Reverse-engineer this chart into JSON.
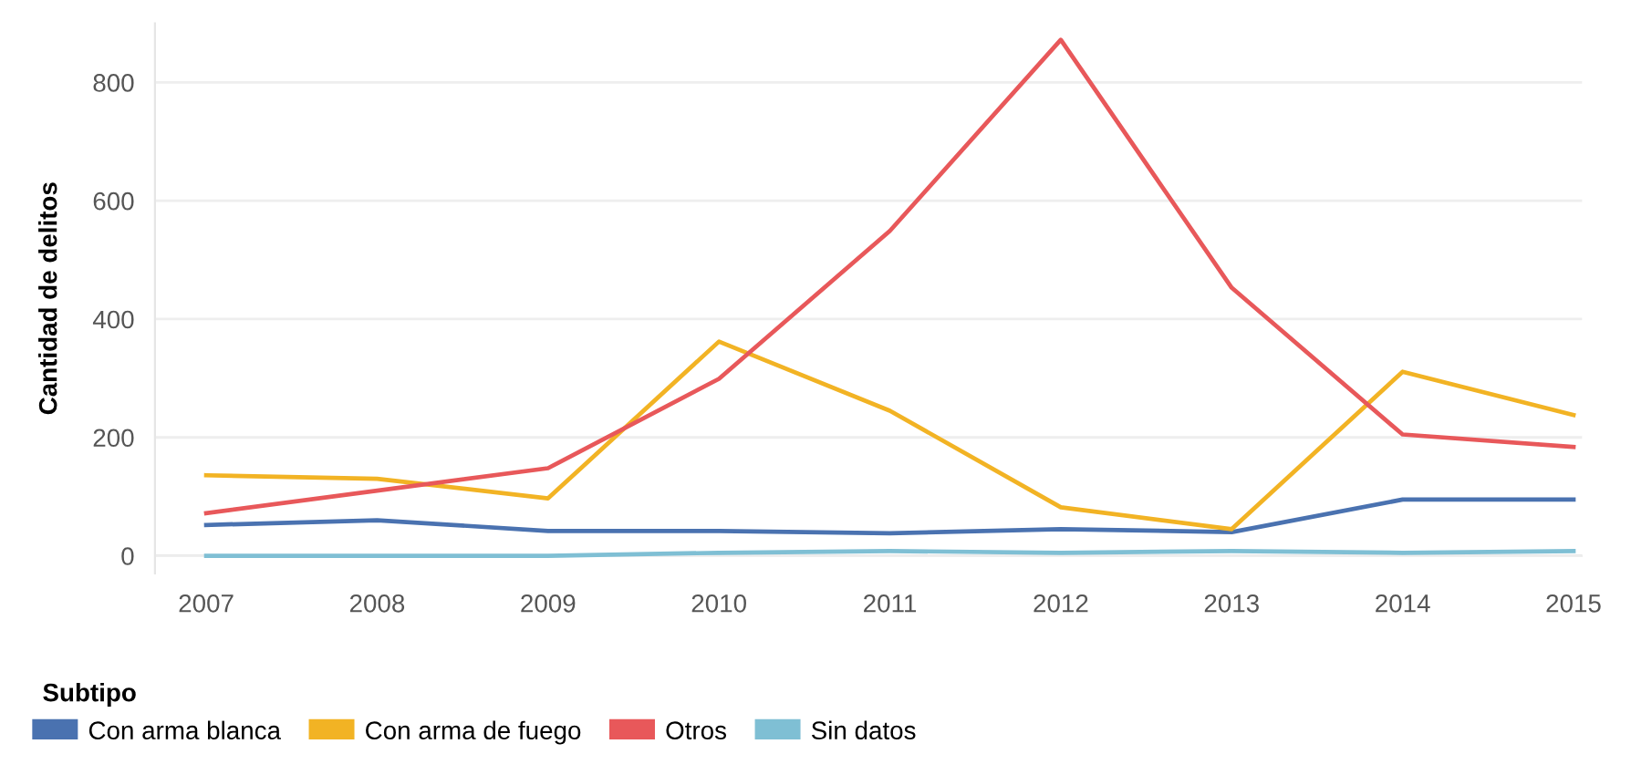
{
  "chart_data": {
    "type": "line",
    "ylabel": "Cantidad de delitos",
    "legend_title": "Subtipo",
    "categories": [
      "2007",
      "2008",
      "2009",
      "2010",
      "2011",
      "2012",
      "2013",
      "2014",
      "2015"
    ],
    "series": [
      {
        "name": "Con arma blanca",
        "color": "#4a72b0",
        "values": [
          52,
          60,
          42,
          42,
          38,
          45,
          40,
          95,
          95
        ]
      },
      {
        "name": "Con arma de fuego",
        "color": "#f2b324",
        "values": [
          136,
          130,
          97,
          362,
          245,
          82,
          45,
          311,
          238
        ]
      },
      {
        "name": "Otros",
        "color": "#e8585a",
        "values": [
          72,
          110,
          148,
          299,
          549,
          872,
          453,
          205,
          184
        ]
      },
      {
        "name": "Sin datos",
        "color": "#7fbfd4",
        "values": [
          0,
          0,
          0,
          5,
          8,
          5,
          8,
          5,
          8
        ]
      }
    ],
    "ylim": [
      -30,
      900
    ],
    "yticks": [
      0,
      200,
      400,
      600,
      800
    ],
    "grid": "y",
    "legend": "bottom left",
    "marker": "none",
    "line_style": "solid"
  }
}
